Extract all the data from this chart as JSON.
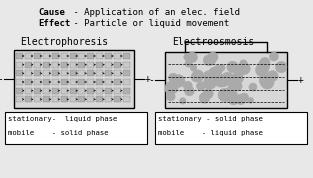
{
  "bg_color": "#e8e8e8",
  "title_cause": "Cause",
  "title_effect": "Effect",
  "cause_text": " - Application of an elec. field",
  "effect_text": " - Particle or liquid movement",
  "ep_label": "Electrophoresis",
  "eo_label": "Electroosmosis",
  "ep_stationary": "stationary-  liquid phase",
  "ep_mobile": "mobile    - solid phase",
  "eo_stationary": "stationary - solid phase",
  "eo_mobile": "mobile    - liquid phase",
  "cell_facecolor": "#cccccc",
  "legend_facecolor": "#ffffff",
  "white": "#ffffff"
}
